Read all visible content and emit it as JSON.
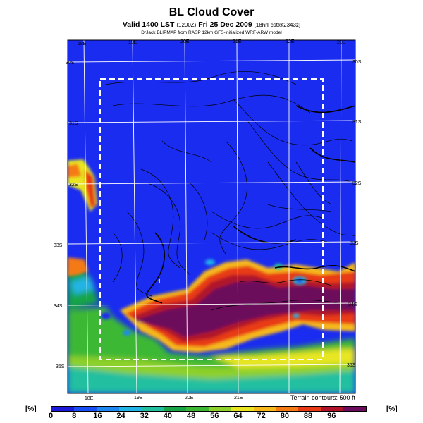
{
  "header": {
    "title": "BL Cloud Cover",
    "subtitle_main": "Valid 1400 LST",
    "subtitle_code": "(1200Z)",
    "subtitle_date": "Fri 25 Dec 2009",
    "subtitle_fcst": "[18hrFcst@2343z]",
    "credit": "DrJack BLIPMAP from RASP 12km GFS-initialized WRF-ARW model"
  },
  "map": {
    "top_lon_labels": [
      "18E",
      "19E",
      "20E",
      "21E",
      "22E",
      "23E"
    ],
    "bottom_lon_labels": [
      "18E",
      "19E",
      "20E",
      "21E"
    ],
    "left_lat_labels": [
      "30S",
      "31S",
      "32S",
      "33S",
      "34S",
      "35S"
    ],
    "right_lat_labels": [
      "30S",
      "31S",
      "32S",
      "33S",
      "34S",
      "35S"
    ],
    "marker_label": "1",
    "terrain_note": "Terrain contours: 500 ft",
    "colors": {
      "ocean_blue": "#1a2cf0",
      "dark_purple": "#5a0a5e"
    }
  },
  "legend": {
    "unit_left": "[%]",
    "unit_right": "[%]",
    "ticks": [
      "0",
      "8",
      "16",
      "24",
      "32",
      "40",
      "48",
      "56",
      "64",
      "72",
      "80",
      "88",
      "96"
    ],
    "colors": [
      "#1a1ad8",
      "#1a4ef5",
      "#1e88f0",
      "#23b4e6",
      "#22bfa0",
      "#19a446",
      "#3cb834",
      "#8ed02c",
      "#e8e620",
      "#f6b81a",
      "#f47a14",
      "#e83a14",
      "#b0142a",
      "#6c0c5c"
    ]
  }
}
